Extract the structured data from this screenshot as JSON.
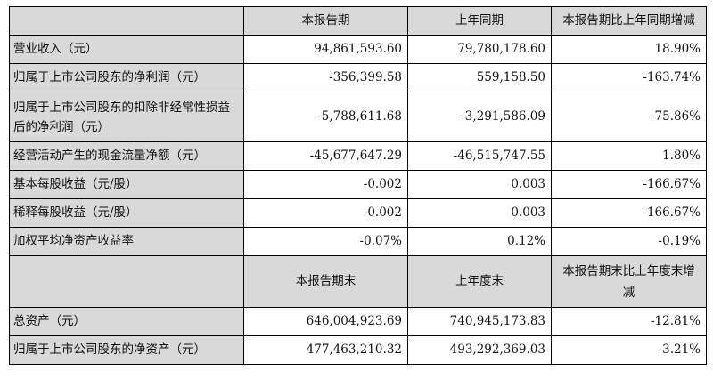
{
  "header1": {
    "col1": "本报告期",
    "col2": "上年同期",
    "col3": "本报告期比上年同期增减"
  },
  "rows1": [
    {
      "label": "营业收入（元）",
      "v1": "94,861,593.60",
      "v2": "79,780,178.60",
      "v3": "18.90%"
    },
    {
      "label": "归属于上市公司股东的净利润（元）",
      "v1": "-356,399.58",
      "v2": "559,158.50",
      "v3": "-163.74%"
    },
    {
      "label": "归属于上市公司股东的扣除非经常性损益后的净利润（元）",
      "v1": "-5,788,611.68",
      "v2": "-3,291,586.09",
      "v3": "-75.86%"
    },
    {
      "label": "经营活动产生的现金流量净额（元）",
      "v1": "-45,677,647.29",
      "v2": "-46,515,747.55",
      "v3": "1.80%"
    },
    {
      "label": "基本每股收益（元/股）",
      "v1": "-0.002",
      "v2": "0.003",
      "v3": "-166.67%"
    },
    {
      "label": "稀释每股收益（元/股）",
      "v1": "-0.002",
      "v2": "0.003",
      "v3": "-166.67%"
    },
    {
      "label": "加权平均净资产收益率",
      "v1": "-0.07%",
      "v2": "0.12%",
      "v3": "-0.19%"
    }
  ],
  "header2": {
    "col1": "本报告期末",
    "col2": "上年度末",
    "col3": "本报告期末比上年度末增减"
  },
  "rows2": [
    {
      "label": "总资产（元）",
      "v1": "646,004,923.69",
      "v2": "740,945,173.83",
      "v3": "-12.81%"
    },
    {
      "label": "归属于上市公司股东的净资产（元）",
      "v1": "477,463,210.32",
      "v2": "493,292,369.03",
      "v3": "-3.21%"
    }
  ]
}
